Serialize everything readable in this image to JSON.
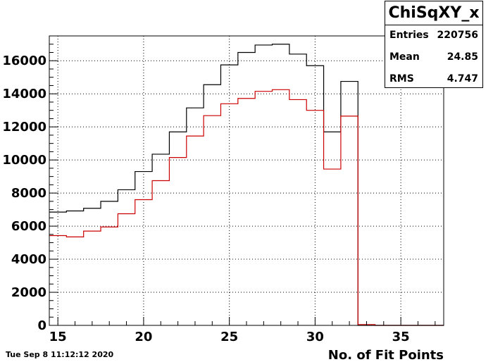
{
  "chart_data": {
    "type": "histogram",
    "title": "ChiSqXY_x",
    "xlabel": "No. of Fit Points",
    "ylabel": "",
    "xlim": [
      14.5,
      37.5
    ],
    "ylim": [
      0,
      17500
    ],
    "grid": true,
    "x_ticks": [
      15,
      20,
      25,
      30,
      35
    ],
    "y_ticks": [
      0,
      2000,
      4000,
      6000,
      8000,
      10000,
      12000,
      14000,
      16000
    ],
    "bin_edges": [
      14.5,
      15.5,
      16.5,
      17.5,
      18.5,
      19.5,
      20.5,
      21.5,
      22.5,
      23.5,
      24.5,
      25.5,
      26.5,
      27.5,
      28.5,
      29.5,
      30.5,
      31.5,
      32.5,
      33.5,
      34.5,
      35.5,
      36.5,
      37.5
    ],
    "series": [
      {
        "color": "#000000",
        "values": [
          6850,
          6920,
          7080,
          7500,
          8200,
          9300,
          10350,
          11700,
          13150,
          14550,
          15750,
          16500,
          16950,
          17000,
          16400,
          15700,
          11700,
          14750,
          0,
          0,
          0,
          0,
          0
        ]
      },
      {
        "color": "#cc0000",
        "values": [
          5430,
          5350,
          5700,
          5950,
          6750,
          7600,
          8750,
          10150,
          11450,
          12680,
          13400,
          13720,
          14150,
          14250,
          13650,
          13000,
          9450,
          12650,
          50,
          0,
          0,
          0,
          0
        ]
      }
    ]
  },
  "stats": {
    "title": "ChiSqXY_x",
    "rows": [
      {
        "label": "Entries",
        "value": "220756"
      },
      {
        "label": "Mean",
        "value": "24.85"
      },
      {
        "label": "RMS",
        "value": "4.747"
      }
    ]
  },
  "footer_date": "Tue Sep  8 11:12:12 2020"
}
